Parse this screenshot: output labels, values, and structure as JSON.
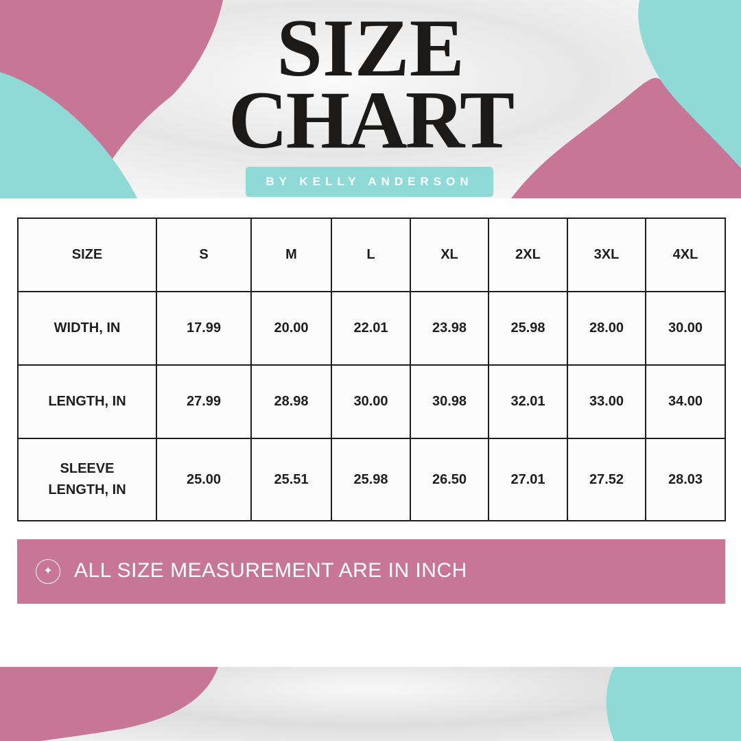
{
  "header": {
    "title_line1": "SIZE",
    "title_line2": "CHART",
    "byline": "BY KELLY ANDERSON"
  },
  "colors": {
    "pink": "#c87696",
    "teal": "#8fdad7",
    "text": "#1e1e1e"
  },
  "table": {
    "header": [
      "SIZE",
      "S",
      "M",
      "L",
      "XL",
      "2XL",
      "3XL",
      "4XL"
    ],
    "rows": [
      [
        "WIDTH, IN",
        "17.99",
        "20.00",
        "22.01",
        "23.98",
        "25.98",
        "28.00",
        "30.00"
      ],
      [
        "LENGTH, IN",
        "27.99",
        "28.98",
        "30.00",
        "30.98",
        "32.01",
        "33.00",
        "34.00"
      ],
      [
        "SLEEVE LENGTH, IN",
        "25.00",
        "25.51",
        "25.98",
        "26.50",
        "27.01",
        "27.52",
        "28.03"
      ]
    ]
  },
  "note": {
    "icon": "sparkle-icon",
    "text": "ALL SIZE MEASUREMENT ARE IN INCH"
  }
}
